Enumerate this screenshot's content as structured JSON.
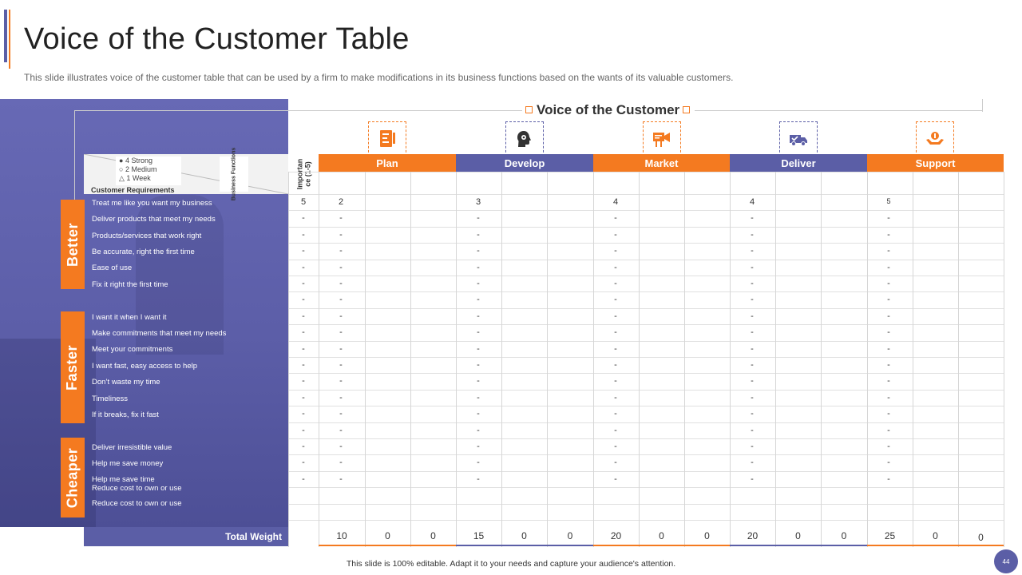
{
  "title": "Voice of the Customer Table",
  "subtitle": "This slide illustrates voice of the customer table that can be used by a firm to make modifications  in its business functions based on the wants of its valuable  customers.",
  "voc_title": "Voice of the Customer",
  "legend": [
    "4 Strong",
    "2 Medium",
    "1 Week"
  ],
  "business_functions_label": "Business Functions",
  "customer_requirements_label": "Customer Requirements",
  "importance_label": "Importance (1-5)",
  "importance_label_lines": [
    "Importan",
    "ce (1-5)"
  ],
  "functions": [
    {
      "name": "Plan",
      "color": "#f47a20",
      "icon": "document-pencil-icon"
    },
    {
      "name": "Develop",
      "color": "#5b5ea6",
      "icon": "head-gear-icon"
    },
    {
      "name": "Market",
      "color": "#f47a20",
      "icon": "megaphone-board-icon"
    },
    {
      "name": "Deliver",
      "color": "#5b5ea6",
      "icon": "delivery-truck-icon"
    },
    {
      "name": "Support",
      "color": "#f47a20",
      "icon": "hands-support-icon"
    }
  ],
  "categories": [
    {
      "name": "Better"
    },
    {
      "name": "Faster"
    },
    {
      "name": "Cheaper"
    }
  ],
  "requirements": [
    "Treat me like you want my business",
    "Deliver products that meet my needs",
    "Products/services that work right",
    "Be accurate, right the first time",
    "Ease of use",
    "Fix it right the first time",
    "",
    "I want  it when  I want it",
    "Make commitments that meet my needs",
    "Meet your commitments",
    "I want  fast, easy access to help",
    "Don’t waste my time",
    "Timeliness",
    "If it breaks, fix it fast",
    "",
    "Deliver irresistible value",
    "Help me save money",
    "Help me save time",
    "Reduce cost to own  or use",
    "Reduce cost to own  or use"
  ],
  "importance": [
    "5",
    "-",
    "-",
    "-",
    "-",
    "-",
    "-",
    "-",
    "-",
    "-",
    "-",
    "-",
    "-",
    "-",
    "-",
    "-",
    "-",
    "-"
  ],
  "function_values": {
    "Plan": [
      "2",
      "-",
      "-",
      "-",
      "-",
      "-",
      "-",
      "-",
      "-",
      "-",
      "-",
      "-",
      "-",
      "-",
      "-",
      "-",
      "-",
      "-"
    ],
    "Develop": [
      "3",
      "-",
      "-",
      "-",
      "-",
      "-",
      "-",
      "-",
      "-",
      "-",
      "-",
      "-",
      "-",
      "-",
      "-",
      "-",
      "-",
      "-"
    ],
    "Market": [
      "4",
      "-",
      "-",
      "-",
      "-",
      "-",
      "-",
      "-",
      "-",
      "-",
      "-",
      "-",
      "-",
      "-",
      "-",
      "-",
      "-",
      "-"
    ],
    "Deliver": [
      "4",
      "-",
      "-",
      "-",
      "-",
      "-",
      "-",
      "-",
      "-",
      "-",
      "-",
      "-",
      "-",
      "-",
      "-",
      "-",
      "-",
      "-"
    ],
    "Support": [
      "5",
      "-",
      "-",
      "-",
      "-",
      "-",
      "-",
      "-",
      "-",
      "-",
      "-",
      "-",
      "-",
      "-",
      "-",
      "-",
      "-",
      "-"
    ]
  },
  "total_label": "Total Weight",
  "totals": [
    "10",
    "0",
    "0",
    "15",
    "0",
    "0",
    "20",
    "0",
    "0",
    "20",
    "0",
    "0",
    "25",
    "0",
    "0"
  ],
  "footer": "This slide is 100% editable.  Adapt it to your needs and capture your audience's attention.",
  "page_number": "44",
  "colors": {
    "orange": "#f47a20",
    "purple": "#5b5ea6"
  }
}
